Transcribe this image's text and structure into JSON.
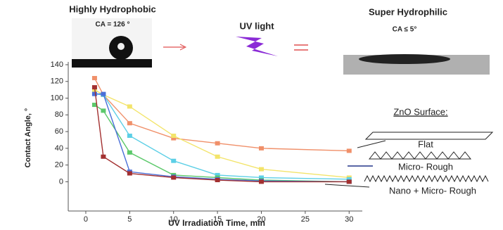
{
  "chart_data": {
    "type": "line",
    "left_title": "Highly Hydrophobic",
    "left_ca": "CA = 126 °",
    "uv_label": "UV light",
    "right_title": "Super Hydrophilic",
    "right_ca": "CA ≤ 5°",
    "xlabel": "UV Irradiation Time, min",
    "ylabel": "Contact Angle, °",
    "surface_title": "ZnO Surface:",
    "flat_label": "Flat",
    "micro_label": "Micro- Rough",
    "nano_label": "Nano + Micro- Rough",
    "x": [
      1,
      2,
      5,
      10,
      15,
      20,
      30
    ],
    "series": [
      {
        "color": "#f0906a",
        "values": [
          124,
          104,
          70,
          52,
          46,
          40,
          37
        ]
      },
      {
        "color": "#f3e46a",
        "values": [
          110,
          104,
          90,
          55,
          30,
          15,
          5
        ]
      },
      {
        "color": "#5ccfe6",
        "values": [
          105,
          104,
          55,
          25,
          8,
          5,
          3
        ]
      },
      {
        "color": "#5cc96b",
        "values": [
          92,
          85,
          35,
          8,
          5,
          2,
          0
        ]
      },
      {
        "color": "#4a6fd8",
        "values": [
          105,
          105,
          12,
          6,
          3,
          1,
          0
        ]
      },
      {
        "color": "#a33030",
        "values": [
          113,
          30,
          10,
          5,
          2,
          0,
          0
        ]
      }
    ],
    "xlim": [
      -2,
      31.5
    ],
    "xticks": [
      0,
      5,
      10,
      15,
      20,
      25,
      30
    ],
    "ylim": [
      -35,
      140
    ],
    "yticks": [
      0,
      20,
      40,
      60,
      80,
      100,
      120,
      140
    ],
    "grid": false
  }
}
